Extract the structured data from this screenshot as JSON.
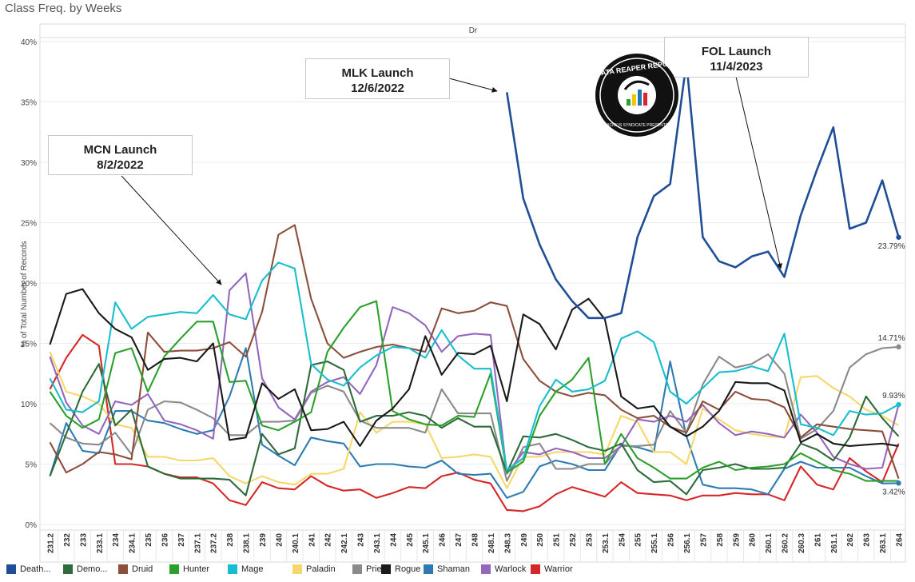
{
  "title": "Class Freq. by Weeks",
  "chart_data": {
    "type": "line",
    "header": "Dr",
    "ylabel": "% of Total Number of Records",
    "ylim": [
      0,
      40
    ],
    "yticks": [
      "0%",
      "5%",
      "10%",
      "15%",
      "20%",
      "25%",
      "30%",
      "35%",
      "40%"
    ],
    "x": [
      "231.2",
      "232",
      "233",
      "233.1",
      "234",
      "234.1",
      "235",
      "236",
      "237",
      "237.1",
      "237.2",
      "238",
      "238.1",
      "239",
      "240",
      "240.1",
      "241",
      "242",
      "242.1",
      "243",
      "243.1",
      "244",
      "245",
      "245.1",
      "246",
      "247",
      "248",
      "248.1",
      "248.3",
      "249",
      "250",
      "251",
      "252",
      "253",
      "253.1",
      "254",
      "255",
      "255.1",
      "256",
      "256.1",
      "257",
      "258",
      "259",
      "260",
      "260.1",
      "260.2",
      "260.3",
      "261",
      "261.1",
      "262",
      "263",
      "263.1",
      "264"
    ],
    "series": [
      {
        "name": "Death...",
        "color": "#1f4e96",
        "values": [
          null,
          null,
          null,
          null,
          null,
          null,
          null,
          null,
          null,
          null,
          null,
          null,
          null,
          null,
          null,
          null,
          null,
          null,
          null,
          null,
          null,
          null,
          null,
          null,
          null,
          null,
          null,
          null,
          35.8,
          27,
          23.2,
          20.3,
          18.5,
          17.1,
          17.1,
          17.5,
          23.8,
          27.2,
          28.2,
          38.3,
          23.8,
          21.8,
          21.3,
          22.2,
          22.6,
          20.5,
          25.6,
          29.4,
          32.9,
          24.5,
          25,
          28.5,
          23.79
        ]
      },
      {
        "name": "Demo...",
        "color": "#2e6b3a",
        "values": [
          4,
          7.5,
          11,
          13.3,
          8.2,
          9.5,
          4.8,
          4.2,
          3.8,
          3.8,
          3.8,
          3.7,
          2.4,
          7.5,
          5.8,
          6.3,
          13.2,
          13.5,
          12.8,
          8.5,
          9,
          9,
          9.3,
          9,
          8,
          8.8,
          8.1,
          8.1,
          4.3,
          7.3,
          7.2,
          7.5,
          7,
          6.4,
          6.1,
          6.7,
          4.5,
          3.5,
          3.6,
          2.5,
          4.5,
          4.7,
          5,
          4.6,
          4.6,
          4.7,
          6.7,
          6.2,
          5.3,
          7.2,
          10.6,
          8.8,
          7.3
        ]
      },
      {
        "name": "Druid",
        "color": "#8b4f3c",
        "values": [
          6.8,
          4.3,
          5,
          6,
          5.8,
          5.4,
          15.9,
          14.3,
          14.4,
          14.4,
          14.6,
          15.1,
          13.9,
          17.6,
          24,
          24.8,
          18.7,
          15,
          13.8,
          14.3,
          14.7,
          14.9,
          14.6,
          14.3,
          17.9,
          17.5,
          17.7,
          18.4,
          18.1,
          13.7,
          11.9,
          11,
          10.6,
          10.9,
          10.7,
          9.5,
          8.8,
          9,
          8.1,
          7.6,
          10.2,
          9.5,
          11,
          10.4,
          10.3,
          9.7,
          7.2,
          8.3,
          8.1,
          7.9,
          7.8,
          7.7,
          3.8
        ]
      },
      {
        "name": "Hunter",
        "color": "#2ca02c",
        "values": [
          11,
          9,
          8,
          8.7,
          14.2,
          14.6,
          11,
          13.9,
          15.4,
          16.8,
          16.8,
          11.8,
          11.9,
          8.2,
          7.8,
          8.5,
          9.3,
          14.3,
          16.3,
          18,
          18.5,
          9.4,
          8.7,
          8.3,
          8.2,
          9,
          8.9,
          12.5,
          4.3,
          5.2,
          9,
          11,
          12,
          13.8,
          5,
          7.5,
          5.5,
          4.7,
          3.8,
          3.8,
          4.7,
          5.2,
          4.5,
          4.7,
          4.8,
          5,
          5.9,
          5.2,
          4.5,
          4.2,
          3.6,
          3.6,
          3.6
        ]
      },
      {
        "name": "Mage",
        "color": "#17becf",
        "values": [
          12.1,
          9.5,
          9.3,
          10.2,
          18.4,
          16.2,
          17.2,
          17.4,
          17.6,
          17.5,
          19,
          17.4,
          17,
          20.2,
          21.7,
          21.2,
          13.3,
          12,
          11.5,
          13,
          14,
          14.7,
          14.6,
          13.8,
          16.1,
          14,
          12.9,
          12.9,
          4.5,
          5.5,
          9.8,
          12,
          11,
          11.2,
          11.9,
          15.4,
          16,
          15.1,
          11,
          10,
          11.3,
          12.6,
          12.7,
          13.1,
          12.7,
          15.8,
          8.3,
          8,
          7.4,
          9.4,
          9.1,
          9.2,
          9.93
        ]
      },
      {
        "name": "Paladin",
        "color": "#f6d86a",
        "values": [
          14.3,
          11,
          10.6,
          10,
          8.3,
          8,
          5.6,
          5.6,
          5.3,
          5.3,
          5.5,
          4,
          3.4,
          4,
          3.5,
          3.3,
          4.2,
          4.2,
          4.6,
          9.3,
          7.6,
          8.5,
          8.5,
          8.3,
          5.5,
          5.6,
          5.8,
          5.6,
          3,
          5.6,
          5.6,
          6,
          6,
          6,
          5.8,
          9,
          8.5,
          6,
          6,
          5,
          9.6,
          8.7,
          7.8,
          7.5,
          7.3,
          7.2,
          12.2,
          12.3,
          11.3,
          10.6,
          9.5,
          9,
          8.2
        ]
      },
      {
        "name": "Priest",
        "color": "#8a8a8a",
        "values": [
          8.4,
          7.2,
          6.7,
          6.6,
          7.6,
          5.8,
          9.5,
          10.2,
          10.1,
          9.5,
          8.8,
          7.4,
          7.4,
          8.5,
          8.5,
          8.6,
          10.9,
          11.5,
          11,
          8.6,
          8,
          8,
          8,
          7.6,
          11.2,
          9.2,
          9.2,
          9.2,
          3.6,
          6.4,
          6.7,
          4.6,
          4.6,
          5,
          5,
          6.5,
          6.5,
          6.6,
          9.4,
          7.6,
          11.6,
          13.9,
          13,
          13.3,
          14.1,
          12.5,
          7.1,
          7.9,
          9.4,
          13,
          14.1,
          14.6,
          14.71
        ]
      },
      {
        "name": "Rogue",
        "color": "#1a1a1a",
        "values": [
          14.9,
          19.1,
          19.5,
          17.5,
          16.2,
          15.5,
          12.8,
          13.7,
          13.8,
          13.5,
          15,
          7,
          7.2,
          11.7,
          10.4,
          11.2,
          7.8,
          7.9,
          8.5,
          6.5,
          8.6,
          9.6,
          11.2,
          15.6,
          12.4,
          14.2,
          14.1,
          14.8,
          10.2,
          17.4,
          16.6,
          14.5,
          17.8,
          18.7,
          17,
          10.6,
          9.6,
          9.8,
          8.1,
          7.3,
          8.1,
          9.4,
          11.8,
          11.7,
          11.7,
          11.1,
          6.8,
          7.5,
          6.7,
          6.5,
          6.6,
          6.7,
          6.5
        ]
      },
      {
        "name": "Shaman",
        "color": "#2e7bb4",
        "values": [
          4,
          8.4,
          6.1,
          5.9,
          9.4,
          9.4,
          8.6,
          8.4,
          7.9,
          7.5,
          7.8,
          10.6,
          14.6,
          6.6,
          5.7,
          4.9,
          7.2,
          6.9,
          6.7,
          4.8,
          5,
          5,
          4.8,
          4.7,
          5.3,
          4.2,
          4.1,
          4.2,
          2.2,
          2.7,
          4.8,
          5.3,
          5,
          4.5,
          4.5,
          6.6,
          6.4,
          6,
          13.5,
          7.3,
          3.3,
          3,
          3,
          2.9,
          2.5,
          4.6,
          5.2,
          4.7,
          4.7,
          4.7,
          4,
          3.4,
          3.42
        ]
      },
      {
        "name": "Warlock",
        "color": "#9467bd",
        "values": [
          13.9,
          10.1,
          8.2,
          7.5,
          10.2,
          9.9,
          10.8,
          8.6,
          8.3,
          7.8,
          7.1,
          19.4,
          20.8,
          12.1,
          9.7,
          8.7,
          11,
          11.8,
          12.2,
          10.8,
          13.2,
          18,
          17.5,
          16.5,
          14.3,
          15.6,
          15.8,
          15.7,
          4.2,
          6,
          5.8,
          6.3,
          6,
          5.5,
          5.5,
          6.5,
          8.7,
          8.5,
          9,
          8.5,
          9.9,
          8.4,
          7.4,
          7.7,
          7.5,
          7.2,
          9.1,
          7.6,
          5.6,
          5,
          4.6,
          4.7,
          9.93
        ]
      },
      {
        "name": "Warrior",
        "color": "#d62728",
        "values": [
          11.2,
          13.8,
          15.7,
          14.8,
          5,
          5,
          4.8,
          4.2,
          3.9,
          3.9,
          3.4,
          2,
          1.6,
          3.5,
          3,
          2.9,
          4,
          3.2,
          2.8,
          2.9,
          2.2,
          2.6,
          3.1,
          3,
          4,
          4.3,
          3.7,
          3.4,
          1.2,
          1.1,
          1.5,
          2.5,
          3.1,
          2.7,
          2.3,
          3.5,
          2.6,
          2.5,
          2.4,
          2,
          2.4,
          2.4,
          2.6,
          2.5,
          2.5,
          2,
          4.8,
          3.3,
          2.9,
          5.5,
          4.4,
          3.5,
          6.7
        ]
      }
    ],
    "end_labels": [
      "23.79%",
      "14.71%",
      "9.93%",
      "3.42%"
    ],
    "annotations": [
      {
        "line1": "MCN Launch",
        "line2": "8/2/2022"
      },
      {
        "line1": "MLK Launch",
        "line2": "12/6/2022"
      },
      {
        "line1": "FOL Launch",
        "line2": "11/4/2023"
      }
    ],
    "grid": true,
    "legend": "bottom"
  },
  "logo_text": "DATA REAPER REPORT",
  "logo_subtext": "VICIOUS SYNDICATE PRESENTS"
}
